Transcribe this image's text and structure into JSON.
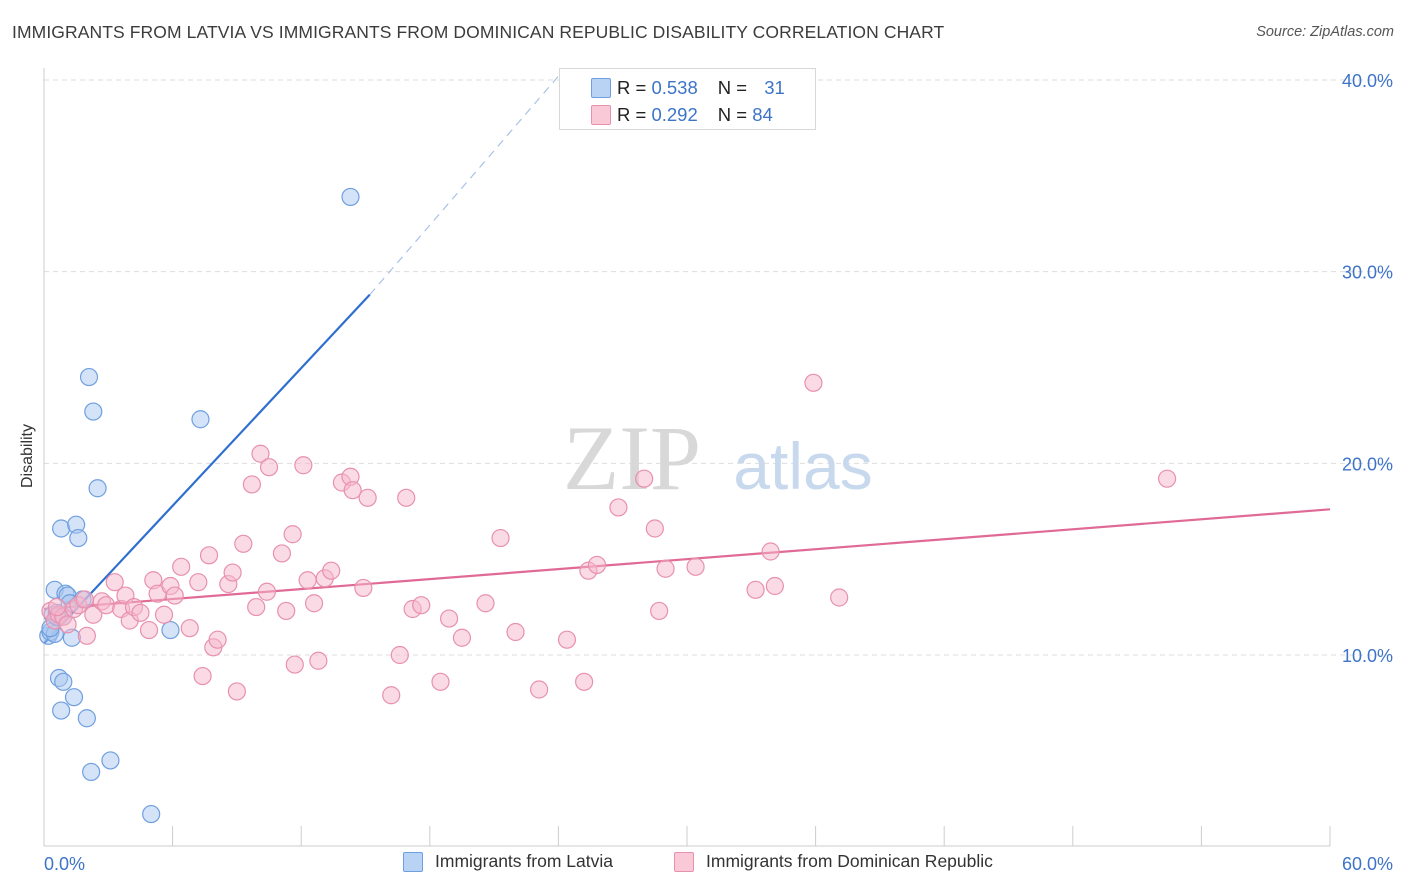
{
  "title": "IMMIGRANTS FROM LATVIA VS IMMIGRANTS FROM DOMINICAN REPUBLIC DISABILITY CORRELATION CHART",
  "source": "Source: ZipAtlas.com",
  "watermark": {
    "zip": "ZIP",
    "atlas": "atlas"
  },
  "colors": {
    "blue_fill": "#a9c8f0",
    "blue_stroke": "#6f9fe0",
    "blue_line": "#2f6fd0",
    "pink_fill": "#f5b8cb",
    "pink_stroke": "#e890ad",
    "pink_line": "#e06a95",
    "axis_label": "#3d74c8",
    "grid": "#dddddd"
  },
  "legend": {
    "rows": [
      {
        "r_label": "R = ",
        "r_value": "0.538",
        "n_label": "N = ",
        "n_value": "31",
        "color": "blue"
      },
      {
        "r_label": "R = ",
        "r_value": "0.292",
        "n_label": "N = ",
        "n_value": "84",
        "color": "pink"
      }
    ]
  },
  "bottom_legend": [
    "Immigrants from Latvia",
    "Immigrants from Dominican Republic"
  ],
  "chart_data": {
    "type": "scatter",
    "title": "IMMIGRANTS FROM LATVIA VS IMMIGRANTS FROM DOMINICAN REPUBLIC DISABILITY CORRELATION CHART",
    "xlabel": "",
    "ylabel": "Disability",
    "xlim": [
      0,
      60
    ],
    "ylim": [
      0,
      42
    ],
    "x_tick_labels": [
      "0.0%",
      "60.0%"
    ],
    "y_ticks": [
      10,
      20,
      30,
      40
    ],
    "y_tick_labels": [
      "10.0%",
      "20.0%",
      "30.0%",
      "40.0%"
    ],
    "grid": true,
    "series": [
      {
        "name": "Immigrants from Latvia",
        "color": "blue",
        "r": 0.538,
        "n": 31,
        "points": [
          [
            0.2,
            11.0
          ],
          [
            0.3,
            11.2
          ],
          [
            0.4,
            12.1
          ],
          [
            0.5,
            13.4
          ],
          [
            0.6,
            12.2
          ],
          [
            0.5,
            11.1
          ],
          [
            0.7,
            8.8
          ],
          [
            0.8,
            7.1
          ],
          [
            0.9,
            8.6
          ],
          [
            0.8,
            16.6
          ],
          [
            0.9,
            12.0
          ],
          [
            1.0,
            13.2
          ],
          [
            1.1,
            13.1
          ],
          [
            1.2,
            12.7
          ],
          [
            1.3,
            10.9
          ],
          [
            1.4,
            7.8
          ],
          [
            1.5,
            16.8
          ],
          [
            1.6,
            16.1
          ],
          [
            1.8,
            12.9
          ],
          [
            2.0,
            6.7
          ],
          [
            2.1,
            24.5
          ],
          [
            2.2,
            3.9
          ],
          [
            2.3,
            22.7
          ],
          [
            2.5,
            18.7
          ],
          [
            3.1,
            4.5
          ],
          [
            5.0,
            1.7
          ],
          [
            5.9,
            11.3
          ],
          [
            7.3,
            22.3
          ],
          [
            14.3,
            33.9
          ],
          [
            0.3,
            11.4
          ],
          [
            0.6,
            12.0
          ]
        ],
        "trend": {
          "x0": 0.0,
          "y0": 10.6,
          "x1": 15.2,
          "y1": 28.8,
          "dash_x1": 24.0,
          "dash_y1": 40.2
        }
      },
      {
        "name": "Immigrants from Dominican Republic",
        "color": "pink",
        "r": 0.292,
        "n": 84,
        "points": [
          [
            0.3,
            12.3
          ],
          [
            0.5,
            11.8
          ],
          [
            0.7,
            12.1
          ],
          [
            0.9,
            12.0
          ],
          [
            1.1,
            11.6
          ],
          [
            1.4,
            12.4
          ],
          [
            1.6,
            12.6
          ],
          [
            2.0,
            11.0
          ],
          [
            2.3,
            12.1
          ],
          [
            2.7,
            12.8
          ],
          [
            2.9,
            12.6
          ],
          [
            3.3,
            13.8
          ],
          [
            3.6,
            12.4
          ],
          [
            3.8,
            13.1
          ],
          [
            4.0,
            11.8
          ],
          [
            4.2,
            12.5
          ],
          [
            4.5,
            12.2
          ],
          [
            4.9,
            11.3
          ],
          [
            5.1,
            13.9
          ],
          [
            5.3,
            13.2
          ],
          [
            5.6,
            12.1
          ],
          [
            5.9,
            13.6
          ],
          [
            6.1,
            13.1
          ],
          [
            6.4,
            14.6
          ],
          [
            6.8,
            11.4
          ],
          [
            7.2,
            13.8
          ],
          [
            7.4,
            8.9
          ],
          [
            7.7,
            15.2
          ],
          [
            7.9,
            10.4
          ],
          [
            8.1,
            10.8
          ],
          [
            8.6,
            13.7
          ],
          [
            8.8,
            14.3
          ],
          [
            9.0,
            8.1
          ],
          [
            9.3,
            15.8
          ],
          [
            9.7,
            18.9
          ],
          [
            9.9,
            12.5
          ],
          [
            10.1,
            20.5
          ],
          [
            10.4,
            13.3
          ],
          [
            10.5,
            19.8
          ],
          [
            11.1,
            15.3
          ],
          [
            11.3,
            12.3
          ],
          [
            11.6,
            16.3
          ],
          [
            11.7,
            9.5
          ],
          [
            12.1,
            19.9
          ],
          [
            12.3,
            13.9
          ],
          [
            12.6,
            12.7
          ],
          [
            12.8,
            9.7
          ],
          [
            13.1,
            14.0
          ],
          [
            13.4,
            14.4
          ],
          [
            13.9,
            19.0
          ],
          [
            14.3,
            19.3
          ],
          [
            14.4,
            18.6
          ],
          [
            14.9,
            13.5
          ],
          [
            15.1,
            18.2
          ],
          [
            16.2,
            7.9
          ],
          [
            16.6,
            10.0
          ],
          [
            16.9,
            18.2
          ],
          [
            17.2,
            12.4
          ],
          [
            17.6,
            12.6
          ],
          [
            18.5,
            8.6
          ],
          [
            18.9,
            11.9
          ],
          [
            19.5,
            10.9
          ],
          [
            20.6,
            12.7
          ],
          [
            21.3,
            16.1
          ],
          [
            22.0,
            11.2
          ],
          [
            23.1,
            8.2
          ],
          [
            24.4,
            10.8
          ],
          [
            25.2,
            8.6
          ],
          [
            25.4,
            14.4
          ],
          [
            25.8,
            14.7
          ],
          [
            26.8,
            17.7
          ],
          [
            28.0,
            19.2
          ],
          [
            28.5,
            16.6
          ],
          [
            28.7,
            12.3
          ],
          [
            29.0,
            14.5
          ],
          [
            30.4,
            14.6
          ],
          [
            33.2,
            13.4
          ],
          [
            33.9,
            15.4
          ],
          [
            34.1,
            13.6
          ],
          [
            35.9,
            24.2
          ],
          [
            37.1,
            13.0
          ],
          [
            52.4,
            19.2
          ],
          [
            0.6,
            12.5
          ],
          [
            1.9,
            12.9
          ]
        ],
        "trend": {
          "x0": 0.0,
          "y0": 12.4,
          "x1": 60.0,
          "y1": 17.6
        }
      }
    ]
  }
}
